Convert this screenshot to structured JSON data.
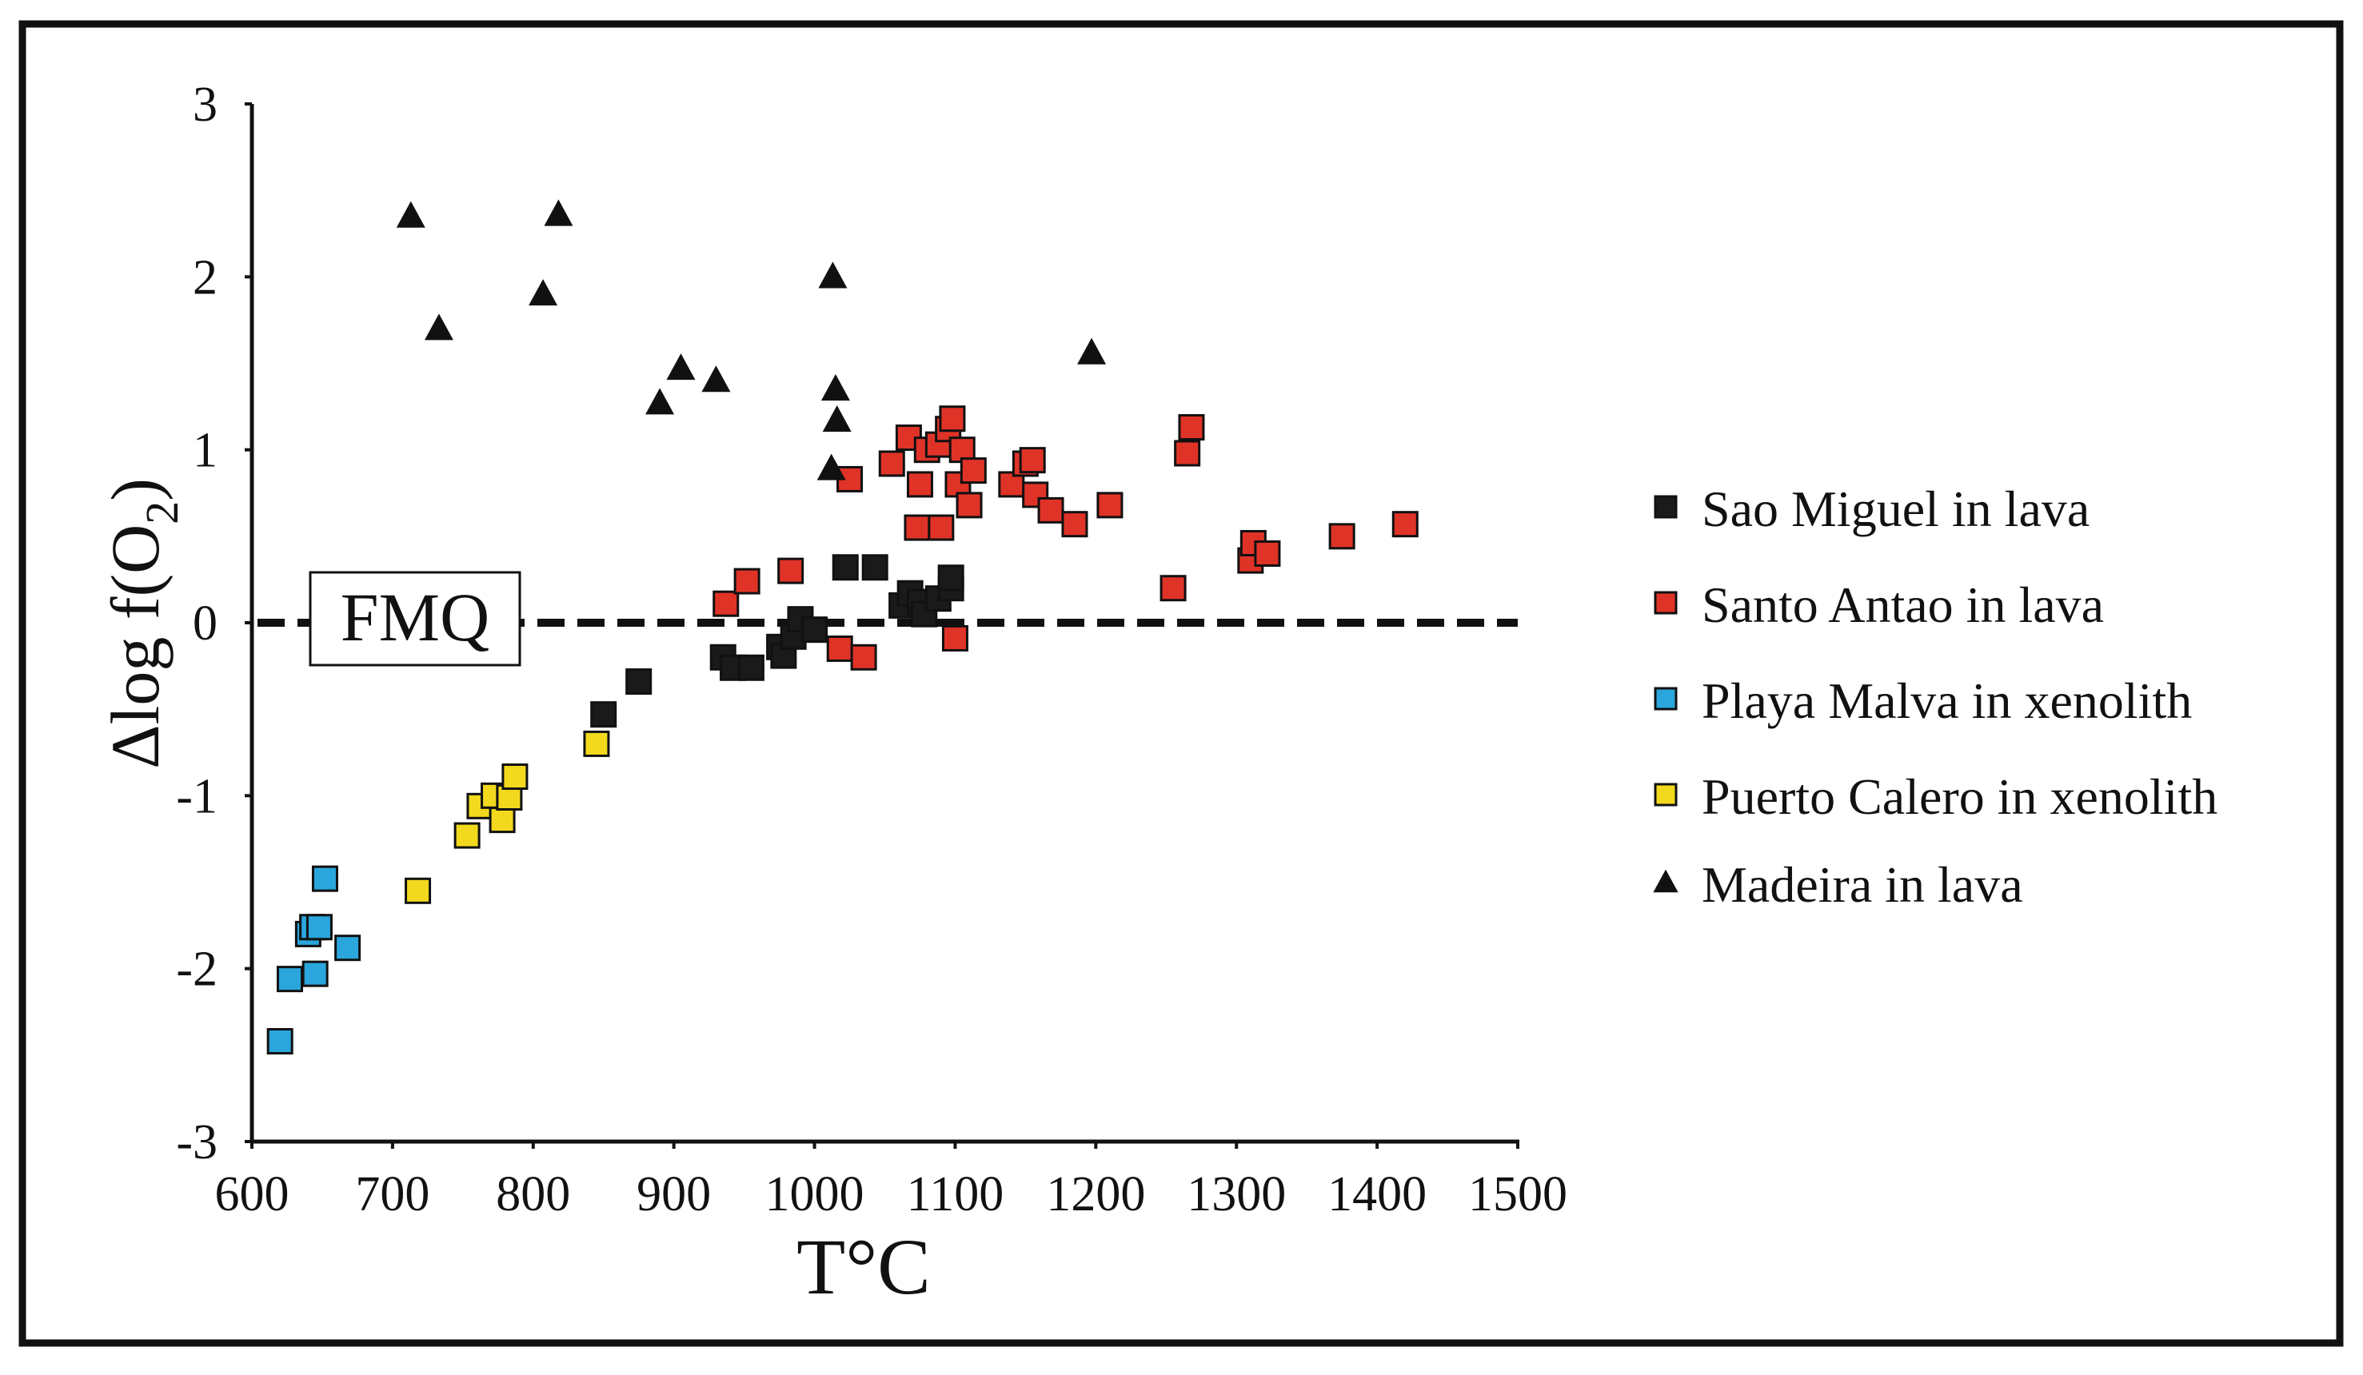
{
  "chart_data": {
    "type": "scatter",
    "title": "",
    "xlabel": "T°C",
    "ylabel": "Δlog f(O2)",
    "ylabel_main": "Δlog f(O",
    "ylabel_sub": "2",
    "ylabel_close": ")",
    "xlim": [
      600,
      1500
    ],
    "ylim": [
      -3,
      3
    ],
    "x_ticks": [
      600,
      700,
      800,
      900,
      1000,
      1100,
      1200,
      1300,
      1400,
      1500
    ],
    "y_ticks": [
      3,
      2,
      1,
      0,
      -1,
      -2,
      -3
    ],
    "grid": false,
    "legend_position": "right",
    "reference_line": {
      "label": "FMQ",
      "y": 0,
      "style": "dashed"
    },
    "series": [
      {
        "name": "Sao Miguel in lava",
        "marker": "square",
        "color": "#1a1a1a",
        "points": [
          [
            850,
            -0.53
          ],
          [
            875,
            -0.34
          ],
          [
            935,
            -0.2
          ],
          [
            942,
            -0.26
          ],
          [
            955,
            -0.26
          ],
          [
            975,
            -0.14
          ],
          [
            978,
            -0.19
          ],
          [
            985,
            -0.08
          ],
          [
            990,
            0.02
          ],
          [
            1000,
            -0.04
          ],
          [
            1022,
            0.32
          ],
          [
            1043,
            0.32
          ],
          [
            1062,
            0.1
          ],
          [
            1068,
            0.17
          ],
          [
            1075,
            0.12
          ],
          [
            1078,
            0.05
          ],
          [
            1088,
            0.14
          ],
          [
            1097,
            0.2
          ],
          [
            1097,
            0.26
          ]
        ]
      },
      {
        "name": "Santo Antao in lava",
        "marker": "square",
        "color": "#e03327",
        "points": [
          [
            937,
            0.11
          ],
          [
            952,
            0.24
          ],
          [
            983,
            0.3
          ],
          [
            1018,
            -0.15
          ],
          [
            1025,
            0.83
          ],
          [
            1035,
            -0.2
          ],
          [
            1055,
            0.92
          ],
          [
            1067,
            1.07
          ],
          [
            1073,
            0.55
          ],
          [
            1075,
            0.8
          ],
          [
            1080,
            1.0
          ],
          [
            1088,
            1.03
          ],
          [
            1090,
            0.55
          ],
          [
            1095,
            1.12
          ],
          [
            1098,
            1.18
          ],
          [
            1100,
            -0.09
          ],
          [
            1102,
            0.8
          ],
          [
            1105,
            1.0
          ],
          [
            1110,
            0.68
          ],
          [
            1113,
            0.88
          ],
          [
            1140,
            0.8
          ],
          [
            1150,
            0.92
          ],
          [
            1155,
            0.94
          ],
          [
            1157,
            0.74
          ],
          [
            1168,
            0.65
          ],
          [
            1185,
            0.57
          ],
          [
            1210,
            0.68
          ],
          [
            1255,
            0.2
          ],
          [
            1265,
            0.98
          ],
          [
            1268,
            1.13
          ],
          [
            1310,
            0.36
          ],
          [
            1312,
            0.46
          ],
          [
            1322,
            0.4
          ],
          [
            1375,
            0.5
          ],
          [
            1420,
            0.57
          ]
        ]
      },
      {
        "name": "Playa Malva in xenolith",
        "marker": "square",
        "color": "#2aa6dc",
        "points": [
          [
            620,
            -2.42
          ],
          [
            627,
            -2.06
          ],
          [
            640,
            -1.8
          ],
          [
            643,
            -1.76
          ],
          [
            645,
            -2.03
          ],
          [
            648,
            -1.76
          ],
          [
            652,
            -1.48
          ],
          [
            668,
            -1.88
          ]
        ]
      },
      {
        "name": "Puerto Calero in xenolith",
        "marker": "square",
        "color": "#f2d91e",
        "points": [
          [
            718,
            -1.55
          ],
          [
            753,
            -1.23
          ],
          [
            762,
            -1.06
          ],
          [
            772,
            -1.0
          ],
          [
            778,
            -1.14
          ],
          [
            783,
            -1.01
          ],
          [
            787,
            -0.89
          ],
          [
            845,
            -0.7
          ]
        ]
      },
      {
        "name": "Madeira in lava",
        "marker": "triangle",
        "color": "#111111",
        "points": [
          [
            713,
            2.35
          ],
          [
            733,
            1.7
          ],
          [
            807,
            1.9
          ],
          [
            818,
            2.36
          ],
          [
            890,
            1.27
          ],
          [
            905,
            1.47
          ],
          [
            930,
            1.4
          ],
          [
            1012,
            0.89
          ],
          [
            1013,
            2.0
          ],
          [
            1015,
            1.35
          ],
          [
            1016,
            1.17
          ],
          [
            1197,
            1.56
          ]
        ]
      }
    ]
  }
}
